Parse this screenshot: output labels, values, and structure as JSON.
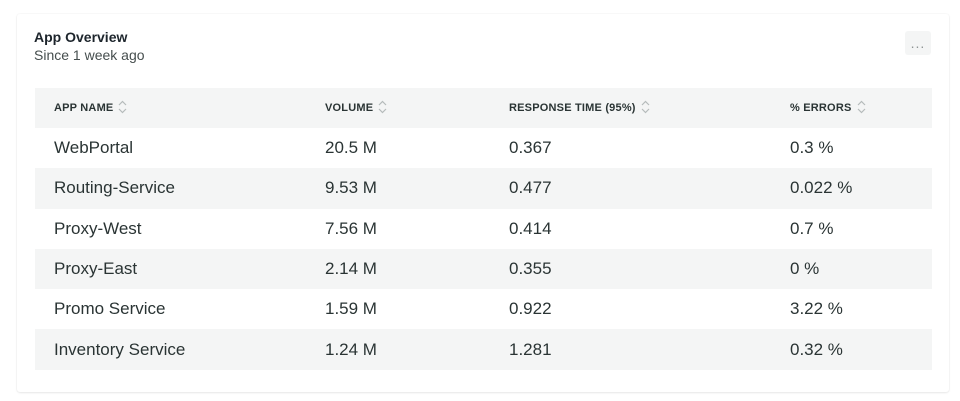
{
  "widget": {
    "title": "App Overview",
    "subtitle": "Since 1 week ago",
    "more_label": "..."
  },
  "table": {
    "columns": [
      {
        "label": "APP NAME"
      },
      {
        "label": "VOLUME"
      },
      {
        "label": "RESPONSE TIME (95%)"
      },
      {
        "label": "% ERRORS"
      }
    ],
    "rows": [
      {
        "name": "WebPortal",
        "volume": "20.5 M",
        "response": "0.367",
        "errors": "0.3 %"
      },
      {
        "name": "Routing-Service",
        "volume": "9.53 M",
        "response": "0.477",
        "errors": "0.022 %"
      },
      {
        "name": "Proxy-West",
        "volume": "7.56 M",
        "response": "0.414",
        "errors": "0.7 %"
      },
      {
        "name": "Proxy-East",
        "volume": "2.14 M",
        "response": "0.355",
        "errors": "0 %"
      },
      {
        "name": "Promo Service",
        "volume": "1.59 M",
        "response": "0.922",
        "errors": "3.22 %"
      },
      {
        "name": "Inventory Service",
        "volume": "1.24 M",
        "response": "1.281",
        "errors": "0.32 %"
      }
    ]
  },
  "icons": {
    "sort": "sort-icon",
    "more": "more-icon"
  }
}
